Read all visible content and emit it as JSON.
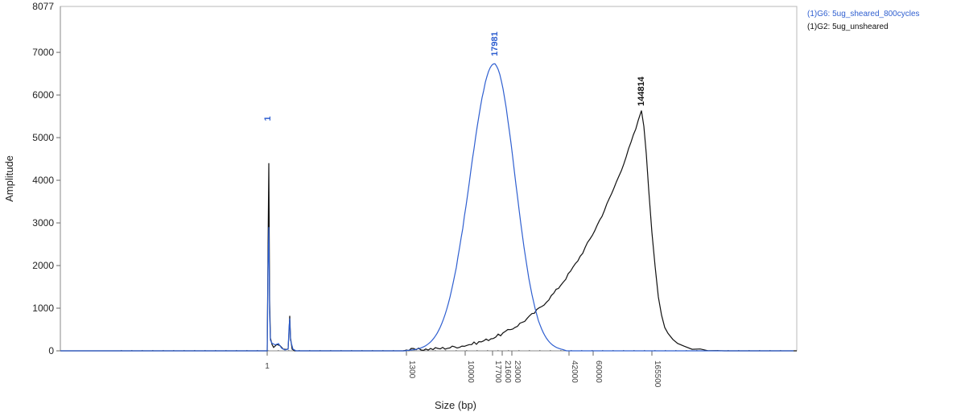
{
  "chart_data": {
    "type": "line",
    "xlabel": "Size (bp)",
    "ylabel": "Amplitude",
    "ylim": [
      0,
      8077
    ],
    "yticks": [
      "0",
      "1000",
      "2000",
      "3000",
      "4000",
      "5000",
      "6000",
      "7000"
    ],
    "ymax_label": "8077",
    "xticks": [
      "1",
      "1300",
      "10000",
      "17700",
      "21600",
      "23000",
      "42000",
      "60000",
      "165500"
    ],
    "series": [
      {
        "name": "(1)G6: 5ug_sheared_800cycles",
        "color": "#2f5fd0",
        "peaks": [
          {
            "label": "1",
            "amplitude": 5200
          },
          {
            "label": "17981",
            "amplitude": 6720
          }
        ]
      },
      {
        "name": "(1)G2: 5ug_unsheared",
        "color": "#111111",
        "peaks": [
          {
            "label": "144814",
            "amplitude": 5550
          }
        ]
      }
    ]
  }
}
